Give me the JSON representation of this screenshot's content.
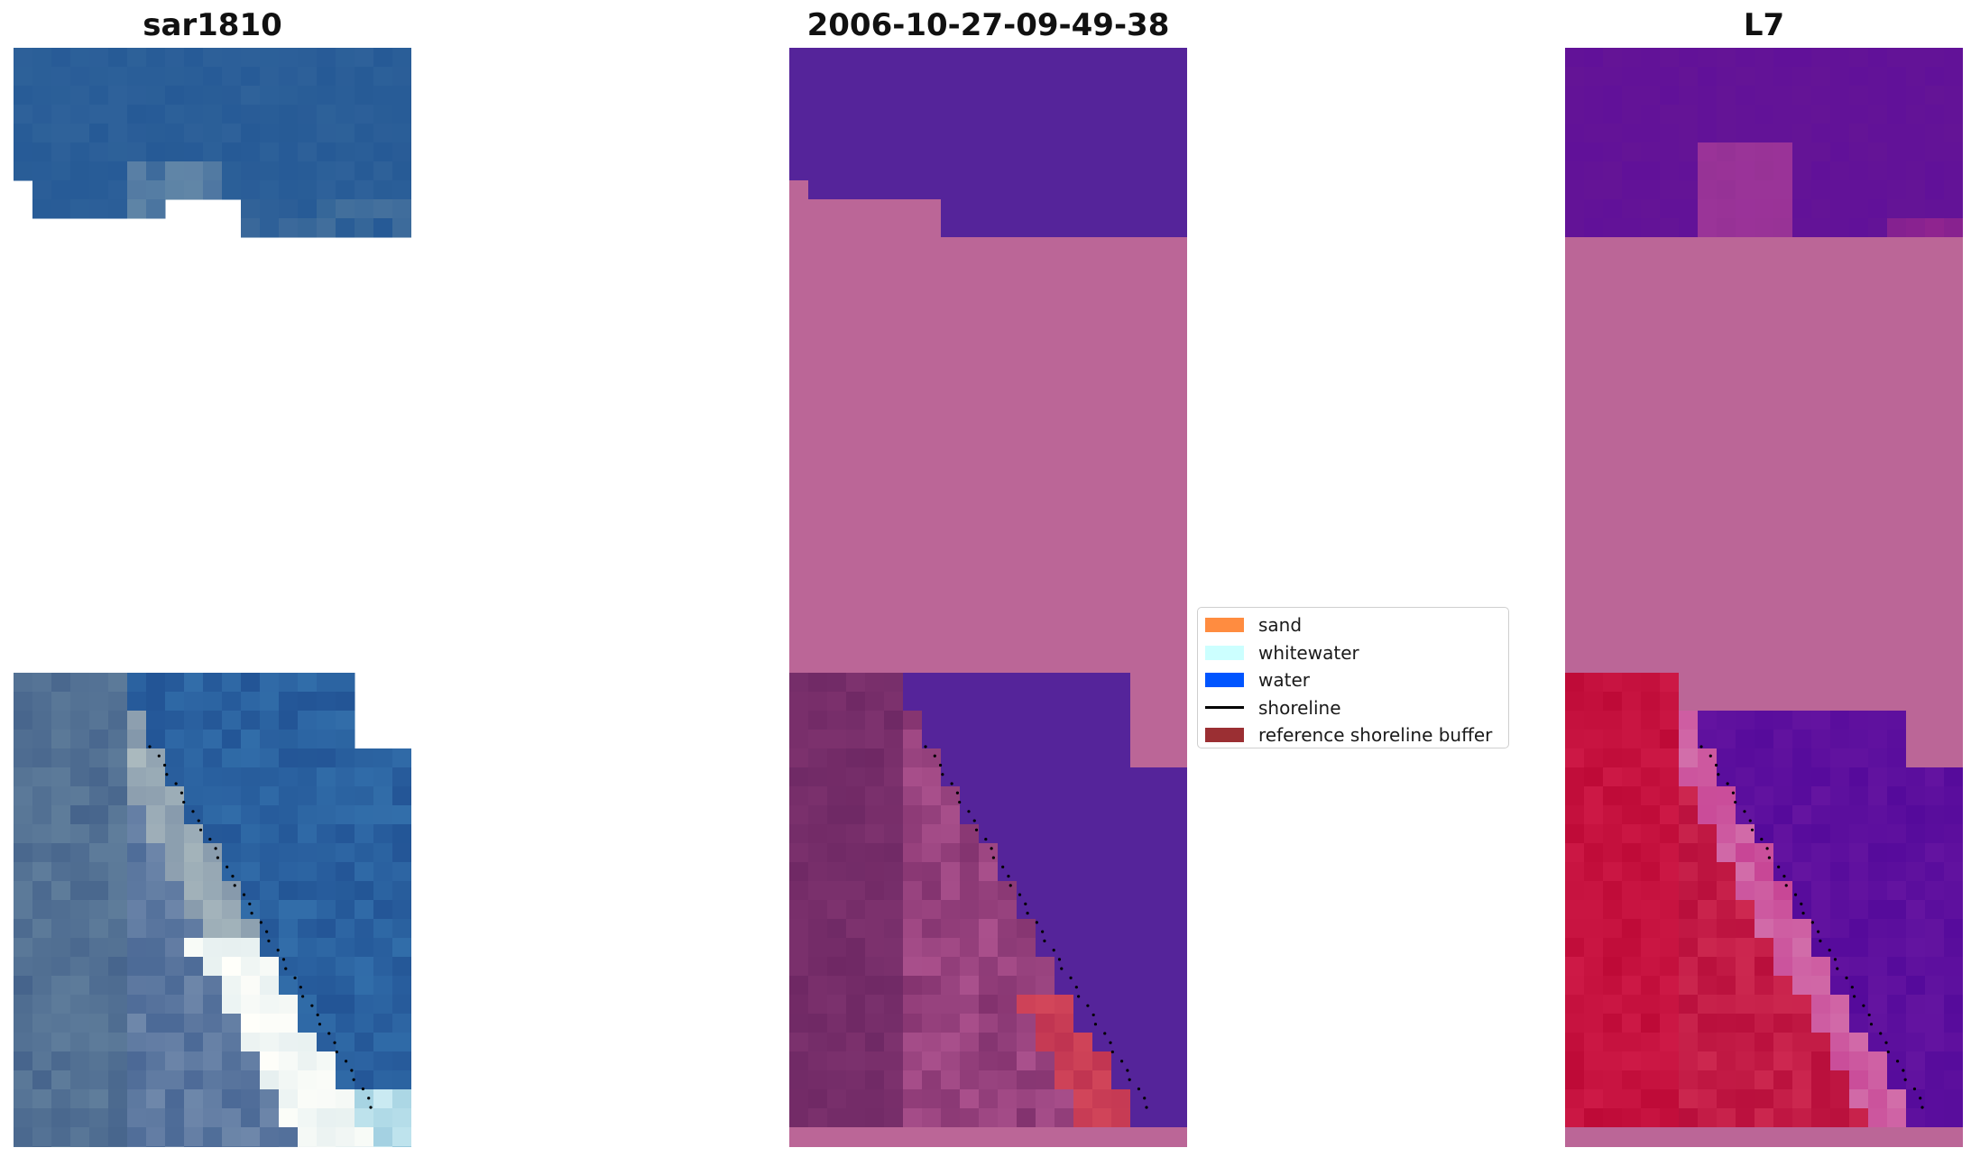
{
  "panels": [
    {
      "title": "sar1810",
      "kind": "rgb"
    },
    {
      "title": "2006-10-27-09-49-38",
      "kind": "classified"
    },
    {
      "title": "L7",
      "kind": "mndwi"
    }
  ],
  "legend": {
    "items": [
      {
        "label": "sand",
        "type": "patch",
        "color": "#ff8c40"
      },
      {
        "label": "whitewater",
        "type": "patch",
        "color": "#ccffff"
      },
      {
        "label": "water",
        "type": "patch",
        "color": "#0055ff"
      },
      {
        "label": "shoreline",
        "type": "line",
        "color": "#000000"
      },
      {
        "label": "reference shoreline buffer",
        "type": "patch",
        "color": "#9b2f33"
      }
    ]
  },
  "colors": {
    "nodata_pink": "#bb6697",
    "classified_water": "#55249a",
    "classified_land": "#7a2a6a",
    "mndwi_water": "#6a0fa0",
    "mndwi_land": "#c20f3c"
  }
}
